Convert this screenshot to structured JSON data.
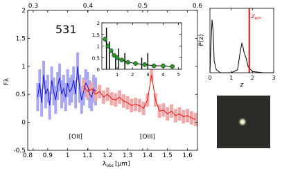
{
  "chart_data": [
    {
      "type": "line",
      "label": "531",
      "y_label": "Fλ",
      "x_label": "λ",
      "x_label_sub": "obs",
      "x_label_unit": "[μm]",
      "annotations": [
        "[OII]",
        "[OIII]"
      ],
      "xlim": [
        0.8,
        1.65
      ],
      "xticks": [
        0.8,
        0.9,
        1.0,
        1.1,
        1.2,
        1.3,
        1.4,
        1.5,
        1.6
      ],
      "x2lim": [
        0.29,
        0.6
      ],
      "x2ticks": [
        0.3,
        0.4,
        0.5,
        0.6
      ],
      "ylim": [
        -0.5,
        2.0
      ],
      "yticks": [
        -0.5,
        0.0,
        0.5,
        1.0,
        1.5,
        2.0
      ],
      "series": [
        {
          "color": "#1010e0",
          "band_color": "#a8a8f0",
          "x": [
            0.85,
            0.86,
            0.87,
            0.88,
            0.89,
            0.9,
            0.91,
            0.92,
            0.93,
            0.94,
            0.95,
            0.96,
            0.97,
            0.98,
            0.99,
            1.0,
            1.01,
            1.02,
            1.03,
            1.04,
            1.05,
            1.06,
            1.07,
            1.08,
            1.09,
            1.1,
            1.11,
            1.12,
            1.13,
            1.14
          ],
          "values": [
            0.45,
            0.7,
            0.35,
            0.85,
            0.5,
            0.6,
            0.3,
            0.75,
            0.55,
            0.4,
            0.65,
            0.8,
            0.5,
            0.6,
            0.45,
            0.7,
            0.55,
            0.6,
            0.75,
            0.5,
            1.0,
            0.6,
            0.4,
            0.55,
            0.7,
            0.65,
            0.5,
            0.45,
            0.6,
            0.55
          ],
          "errors": [
            0.25,
            0.25,
            0.25,
            0.25,
            0.25,
            0.25,
            0.25,
            0.25,
            0.25,
            0.25,
            0.25,
            0.25,
            0.25,
            0.25,
            0.25,
            0.25,
            0.25,
            0.25,
            0.25,
            0.25,
            0.25,
            0.25,
            0.25,
            0.25,
            0.25,
            0.25,
            0.25,
            0.25,
            0.25,
            0.25
          ]
        },
        {
          "color": "#f01010",
          "band_color": "#f0a8a8",
          "x": [
            1.08,
            1.1,
            1.12,
            1.14,
            1.16,
            1.18,
            1.2,
            1.22,
            1.24,
            1.26,
            1.28,
            1.3,
            1.32,
            1.34,
            1.36,
            1.38,
            1.4,
            1.42,
            1.44,
            1.46,
            1.48,
            1.5,
            1.52,
            1.54,
            1.56,
            1.58,
            1.6,
            1.62,
            1.64
          ],
          "values": [
            0.65,
            0.55,
            0.6,
            0.5,
            0.55,
            0.45,
            0.5,
            0.42,
            0.4,
            0.45,
            0.38,
            0.35,
            0.3,
            0.32,
            0.3,
            0.25,
            0.4,
            0.85,
            0.4,
            0.2,
            0.22,
            0.15,
            0.2,
            0.12,
            0.15,
            0.1,
            0.12,
            0.08,
            0.05
          ],
          "errors": [
            0.12,
            0.12,
            0.12,
            0.12,
            0.12,
            0.12,
            0.12,
            0.12,
            0.12,
            0.12,
            0.12,
            0.12,
            0.12,
            0.12,
            0.12,
            0.12,
            0.12,
            0.12,
            0.12,
            0.12,
            0.12,
            0.12,
            0.12,
            0.12,
            0.12,
            0.12,
            0.12,
            0.12,
            0.12
          ]
        }
      ]
    },
    {
      "type": "inset",
      "xlim": [
        0,
        5.2
      ],
      "xticks": [
        1,
        2,
        3,
        4,
        5
      ],
      "ylim": [
        0,
        2.0
      ],
      "yticks": [
        0.0,
        0.5,
        1.0,
        1.5,
        2.0
      ],
      "spikes": {
        "color": "#000000",
        "x": [
          0.3,
          0.5,
          0.9,
          1.1,
          1.5,
          2.6,
          3.0
        ],
        "values": [
          1.8,
          1.2,
          0.6,
          0.9,
          0.7,
          0.5,
          0.7
        ]
      },
      "points": {
        "color": "#2a9a2a",
        "x": [
          0.2,
          0.4,
          0.6,
          0.8,
          1.0,
          1.3,
          1.7,
          2.2,
          2.8,
          3.4,
          4.0,
          4.6
        ],
        "values": [
          1.3,
          1.0,
          0.8,
          0.6,
          0.5,
          0.4,
          0.3,
          0.25,
          0.2,
          0.15,
          0.15,
          0.12
        ]
      }
    },
    {
      "type": "pz",
      "y_label": "P(z)",
      "x_label": "z",
      "xlim": [
        0,
        3
      ],
      "xticks": [
        0,
        1,
        2,
        3
      ],
      "ylim": [
        0,
        1
      ],
      "x": [
        0,
        0.05,
        0.1,
        0.15,
        0.2,
        0.3,
        0.5,
        1.0,
        1.3,
        1.4,
        1.5,
        1.55,
        1.6,
        1.7,
        1.8,
        2.0,
        2.5,
        3.0
      ],
      "values": [
        0,
        0.5,
        0.9,
        0.7,
        0.2,
        0.05,
        0,
        0,
        0.05,
        0.3,
        0.5,
        0.45,
        0.35,
        0.25,
        0.1,
        0.02,
        0,
        0
      ],
      "color": "#000000",
      "z_em": 1.85,
      "z_em_color": "#e01010",
      "z_em_label": "z",
      "z_em_label_sub": "em"
    }
  ]
}
